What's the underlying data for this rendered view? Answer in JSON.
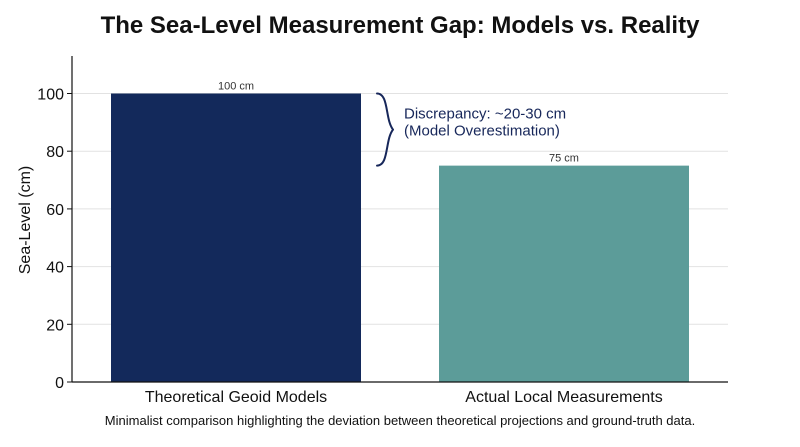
{
  "chart_data": {
    "type": "bar",
    "title": "The Sea-Level Measurement Gap: Models vs. Reality",
    "subtitle": "",
    "ylabel": "Sea-Level (cm)",
    "xlabel": "",
    "categories": [
      "Theoretical Geoid Models",
      "Actual Local Measurements"
    ],
    "values": [
      100,
      75
    ],
    "data_labels": [
      "100 cm",
      "75 cm"
    ],
    "colors": [
      "#13295b",
      "#5c9c99"
    ],
    "ylim": [
      0,
      113
    ],
    "yticks": [
      0,
      20,
      40,
      60,
      80,
      100
    ],
    "grid": true,
    "annotation": {
      "line1": "Discrepancy: ~20-30 cm",
      "line2": "(Model Overestimation)",
      "color": "#17275a"
    },
    "caption": "Minimalist comparison highlighting the deviation between theoretical projections and ground-truth data."
  }
}
